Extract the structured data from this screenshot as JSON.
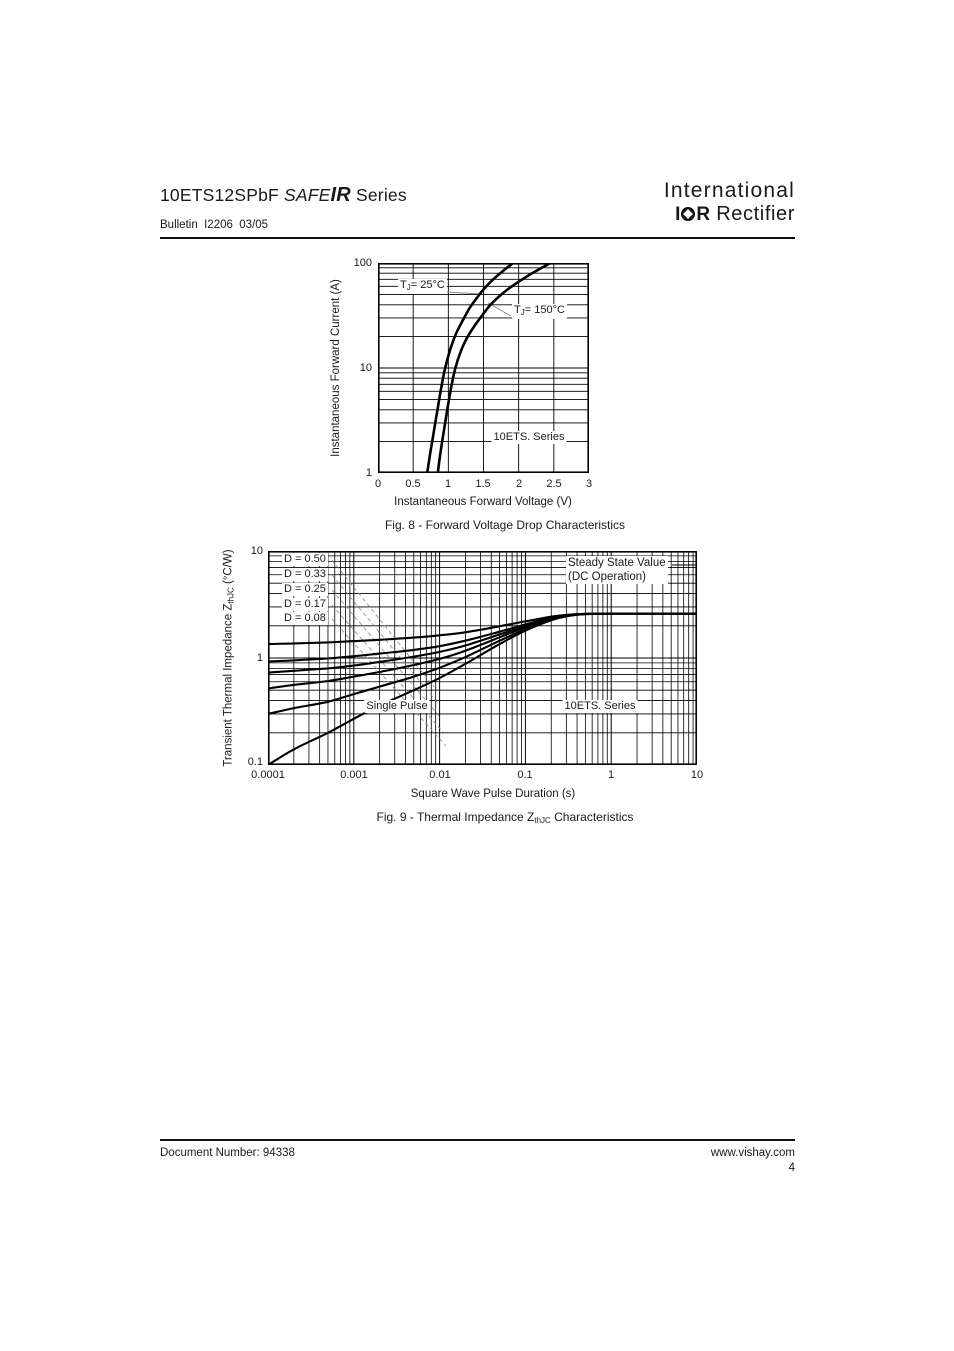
{
  "header": {
    "title_model": "10ETS12SPbF",
    "title_safe": "SAFE",
    "title_ir": "IR",
    "title_series": " Series",
    "bulletin": "Bulletin  I2206  03/05",
    "logo_top": "International",
    "logo_i": "I",
    "logo_r": "R",
    "logo_name": "Rectifier"
  },
  "footer": {
    "document_number": "Document Number: 94338",
    "website": "www.vishay.com",
    "page_number": "4"
  },
  "chart_data": [
    {
      "id": "fig8",
      "type": "line",
      "title": "Fig. 8 - Forward Voltage Drop Characteristics",
      "xlabel": "Instantaneous Forward Voltage (V)",
      "ylabel": "Instantaneous Forward Current (A)",
      "x_axis": {
        "type": "linear",
        "min": 0,
        "max": 3,
        "tick_values": [
          0,
          0.5,
          1,
          1.5,
          2,
          2.5,
          3
        ],
        "ticks": [
          "0",
          "0.5",
          "1",
          "1.5",
          "2",
          "2.5",
          "3"
        ]
      },
      "y_axis": {
        "type": "log",
        "min": 1,
        "max": 100,
        "tick_values": [
          1,
          10,
          100
        ],
        "ticks": [
          "1",
          "10",
          "100"
        ]
      },
      "grid": true,
      "series": [
        {
          "name": "TJ = 25°C",
          "points": [
            [
              0.7,
              1
            ],
            [
              0.74,
              1.5
            ],
            [
              0.79,
              2.4
            ],
            [
              0.84,
              3.8
            ],
            [
              0.89,
              6.0
            ],
            [
              0.94,
              9.0
            ],
            [
              1.0,
              13
            ],
            [
              1.06,
              17.5
            ],
            [
              1.12,
              22
            ],
            [
              1.2,
              28
            ],
            [
              1.3,
              37
            ],
            [
              1.4,
              46
            ],
            [
              1.5,
              56
            ],
            [
              1.62,
              68
            ],
            [
              1.76,
              82
            ],
            [
              1.92,
              100
            ]
          ]
        },
        {
          "name": "TJ = 150°C",
          "points": [
            [
              0.85,
              1
            ],
            [
              0.89,
              1.6
            ],
            [
              0.94,
              2.6
            ],
            [
              0.99,
              4.2
            ],
            [
              1.04,
              6.5
            ],
            [
              1.1,
              10
            ],
            [
              1.17,
              14
            ],
            [
              1.25,
              18.5
            ],
            [
              1.35,
              24
            ],
            [
              1.47,
              31
            ],
            [
              1.6,
              40
            ],
            [
              1.75,
              50
            ],
            [
              1.95,
              63
            ],
            [
              2.18,
              79
            ],
            [
              2.45,
              100
            ]
          ]
        }
      ],
      "annotations": {
        "t25": {
          "pre": "T",
          "sub": "J",
          "post": "= 25°C"
        },
        "t150": {
          "pre": "T",
          "sub": "J",
          "post": "= 150°C"
        },
        "series_label": "10ETS. Series"
      }
    },
    {
      "id": "fig9",
      "type": "line",
      "title_pre": "Fig. 9 - Thermal Impedance Z",
      "title_sub": "thJC",
      "title_post": " Characteristics",
      "xlabel": "Square Wave Pulse Duration (s)",
      "ylabel_pre": "Transient Thermal Impedance Z",
      "ylabel_sub": "thJC",
      "ylabel_post": " (°C/W)",
      "x_axis": {
        "type": "log",
        "min": 0.0001,
        "max": 10,
        "tick_values": [
          0.0001,
          0.001,
          0.01,
          0.1,
          1,
          10
        ],
        "ticks": [
          "0.0001",
          "0.001",
          "0.01",
          "0.1",
          "1",
          "10"
        ]
      },
      "y_axis": {
        "type": "log",
        "min": 0.1,
        "max": 10,
        "tick_values": [
          0.1,
          1,
          10
        ],
        "ticks": [
          "0.1",
          "1",
          "10"
        ]
      },
      "grid": true,
      "steady_state_value": 2.6,
      "series": [
        {
          "name": "D = 0.50",
          "points": [
            [
              0.0001,
              1.35
            ],
            [
              0.0002,
              1.37
            ],
            [
              0.0005,
              1.4
            ],
            [
              0.001,
              1.44
            ],
            [
              0.002,
              1.48
            ],
            [
              0.005,
              1.55
            ],
            [
              0.01,
              1.63
            ],
            [
              0.02,
              1.74
            ],
            [
              0.05,
              1.98
            ],
            [
              0.1,
              2.2
            ],
            [
              0.2,
              2.43
            ],
            [
              0.3,
              2.53
            ],
            [
              0.5,
              2.59
            ],
            [
              1,
              2.6
            ],
            [
              2,
              2.6
            ],
            [
              5,
              2.6
            ],
            [
              10,
              2.6
            ]
          ]
        },
        {
          "name": "D = 0.33",
          "points": [
            [
              0.0001,
              0.93
            ],
            [
              0.0002,
              0.95
            ],
            [
              0.0005,
              0.99
            ],
            [
              0.001,
              1.04
            ],
            [
              0.002,
              1.1
            ],
            [
              0.005,
              1.19
            ],
            [
              0.01,
              1.29
            ],
            [
              0.02,
              1.45
            ],
            [
              0.05,
              1.76
            ],
            [
              0.1,
              2.06
            ],
            [
              0.2,
              2.37
            ],
            [
              0.3,
              2.5
            ],
            [
              0.5,
              2.58
            ],
            [
              1,
              2.6
            ],
            [
              2,
              2.6
            ],
            [
              5,
              2.6
            ],
            [
              10,
              2.6
            ]
          ]
        },
        {
          "name": "D = 0.25",
          "points": [
            [
              0.0001,
              0.73
            ],
            [
              0.0002,
              0.76
            ],
            [
              0.0005,
              0.8
            ],
            [
              0.001,
              0.85
            ],
            [
              0.002,
              0.92
            ],
            [
              0.005,
              1.03
            ],
            [
              0.01,
              1.14
            ],
            [
              0.02,
              1.31
            ],
            [
              0.05,
              1.66
            ],
            [
              0.1,
              2.0
            ],
            [
              0.2,
              2.34
            ],
            [
              0.3,
              2.49
            ],
            [
              0.5,
              2.58
            ],
            [
              1,
              2.6
            ],
            [
              2,
              2.6
            ],
            [
              5,
              2.6
            ],
            [
              10,
              2.6
            ]
          ]
        },
        {
          "name": "D = 0.17",
          "points": [
            [
              0.0001,
              0.52
            ],
            [
              0.0002,
              0.56
            ],
            [
              0.0005,
              0.61
            ],
            [
              0.001,
              0.67
            ],
            [
              0.002,
              0.74
            ],
            [
              0.005,
              0.86
            ],
            [
              0.01,
              0.98
            ],
            [
              0.02,
              1.17
            ],
            [
              0.05,
              1.56
            ],
            [
              0.1,
              1.94
            ],
            [
              0.2,
              2.31
            ],
            [
              0.3,
              2.48
            ],
            [
              0.5,
              2.58
            ],
            [
              1,
              2.6
            ],
            [
              2,
              2.6
            ],
            [
              5,
              2.6
            ],
            [
              10,
              2.6
            ]
          ]
        },
        {
          "name": "D = 0.08",
          "points": [
            [
              0.0001,
              0.3
            ],
            [
              0.0002,
              0.34
            ],
            [
              0.0005,
              0.39
            ],
            [
              0.001,
              0.46
            ],
            [
              0.002,
              0.54
            ],
            [
              0.005,
              0.67
            ],
            [
              0.01,
              0.81
            ],
            [
              0.02,
              1.02
            ],
            [
              0.05,
              1.45
            ],
            [
              0.1,
              1.86
            ],
            [
              0.2,
              2.28
            ],
            [
              0.3,
              2.46
            ],
            [
              0.5,
              2.57
            ],
            [
              1,
              2.6
            ],
            [
              2,
              2.6
            ],
            [
              5,
              2.6
            ],
            [
              10,
              2.6
            ]
          ]
        },
        {
          "name": "Single Pulse",
          "points": [
            [
              0.0001,
              0.1
            ],
            [
              0.0002,
              0.14
            ],
            [
              0.0005,
              0.2
            ],
            [
              0.001,
              0.27
            ],
            [
              0.002,
              0.36
            ],
            [
              0.005,
              0.5
            ],
            [
              0.01,
              0.65
            ],
            [
              0.02,
              0.88
            ],
            [
              0.05,
              1.35
            ],
            [
              0.1,
              1.8
            ],
            [
              0.2,
              2.25
            ],
            [
              0.3,
              2.45
            ],
            [
              0.5,
              2.57
            ],
            [
              1,
              2.6
            ],
            [
              2,
              2.6
            ],
            [
              5,
              2.6
            ],
            [
              10,
              2.6
            ]
          ]
        }
      ],
      "annotations": {
        "steady_line1": "Steady State Value",
        "steady_line2": "(DC Operation)",
        "single_pulse": "Single Pulse",
        "series_label": "10ETS. Series"
      }
    }
  ]
}
